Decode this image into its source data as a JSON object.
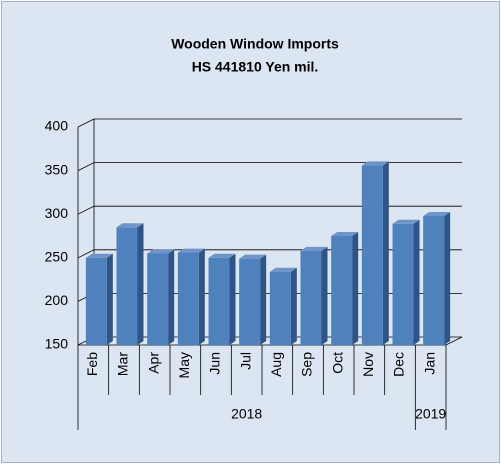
{
  "chart_data": {
    "type": "bar3d",
    "title": "Wooden Window Imports",
    "subtitle": "HS 441810 Yen mil.",
    "categories": [
      "Feb",
      "Mar",
      "Apr",
      "May",
      "Jun",
      "Jul",
      "Aug",
      "Sep",
      "Oct",
      "Nov",
      "Dec",
      "Jan"
    ],
    "groups": [
      {
        "label": "2018",
        "count": 11
      },
      {
        "label": "2019",
        "count": 1
      }
    ],
    "values": [
      250,
      285,
      255,
      256,
      250,
      249,
      234,
      258,
      275,
      356,
      289,
      298
    ],
    "color": "#4f81bd",
    "ylim": [
      150,
      400
    ],
    "yticks": [
      150,
      200,
      250,
      300,
      350,
      400
    ],
    "grid": true
  }
}
